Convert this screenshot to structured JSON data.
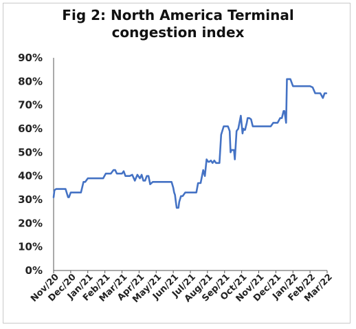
{
  "chart_data": {
    "type": "line",
    "title_lines": [
      "Fig 2: North America Terminal",
      "congestion index"
    ],
    "xlabel": "",
    "ylabel": "",
    "ylim": [
      0,
      90
    ],
    "y_ticks": [
      "0%",
      "10%",
      "20%",
      "30%",
      "40%",
      "50%",
      "60%",
      "70%",
      "80%",
      "90%"
    ],
    "x_tick_labels": [
      "Nov/20",
      "Dec/20",
      "Jan/21",
      "Feb/21",
      "Mar/21",
      "Apr/21",
      "May/21",
      "Jun/21",
      "Jul/21",
      "Aug/21",
      "Sep/21",
      "Oct/21",
      "Nov/21",
      "Dec/21",
      "Jan/22",
      "Feb/22",
      "Mar/22"
    ],
    "grid": false,
    "legend": "none",
    "line_color": "#4472c4",
    "series": [
      {
        "x": [
          0.0,
          0.05,
          0.15,
          0.25,
          0.35,
          0.45,
          0.55,
          0.7,
          0.85,
          0.9,
          1.0,
          1.08,
          1.2,
          1.4,
          1.6,
          1.75,
          1.85,
          2.0,
          2.15,
          2.3,
          2.45,
          2.6,
          2.75,
          2.9,
          3.05,
          3.2,
          3.35,
          3.5,
          3.6,
          3.7,
          3.85,
          4.0,
          4.1,
          4.2,
          4.3,
          4.45,
          4.6,
          4.75,
          4.9,
          5.05,
          5.15,
          5.25,
          5.35,
          5.45,
          5.55,
          5.65,
          5.8,
          5.9,
          6.0,
          6.1,
          6.3,
          6.5,
          6.7,
          6.9,
          7.0,
          7.05,
          7.1,
          7.15,
          7.2,
          7.25,
          7.3,
          7.35,
          7.45,
          7.55,
          7.7,
          7.9,
          8.05,
          8.2,
          8.35,
          8.45,
          8.6,
          8.75,
          8.85,
          8.95,
          9.05,
          9.1,
          9.2,
          9.3,
          9.4,
          9.5,
          9.6,
          9.7,
          9.8,
          9.95,
          10.1,
          10.2,
          10.3,
          10.35,
          10.4,
          10.5,
          10.55,
          10.6,
          10.7,
          10.8,
          10.95,
          11.05,
          11.1,
          11.15,
          11.2,
          11.25,
          11.3,
          11.35,
          11.45,
          11.55,
          11.65,
          11.75,
          11.9,
          12.05,
          12.15,
          12.25,
          12.5,
          12.7,
          12.85,
          12.95,
          13.1,
          13.25,
          13.35,
          13.45,
          13.5,
          13.55,
          13.6,
          13.65,
          13.75,
          13.85,
          14.0,
          14.2,
          14.4,
          14.6,
          14.8,
          15.0,
          15.15,
          15.3,
          15.45,
          15.6,
          15.75,
          15.85,
          15.95
        ],
        "values": [
          31,
          34,
          34.5,
          34.5,
          34.5,
          34.5,
          34.5,
          34.5,
          31,
          31,
          33,
          33,
          33,
          33,
          33,
          37.5,
          37.5,
          39,
          39,
          39,
          39,
          39,
          39,
          39,
          41,
          41,
          41,
          42.5,
          42.5,
          41,
          41,
          41,
          42,
          40,
          40,
          40,
          40.5,
          38,
          40.5,
          39,
          40.5,
          38,
          38,
          40,
          40,
          36.5,
          37.5,
          37.5,
          37.5,
          37.5,
          37.5,
          37.5,
          37.5,
          37.5,
          35,
          33,
          32,
          29,
          26.5,
          26.5,
          26.5,
          29,
          31.5,
          31.5,
          33,
          33,
          33,
          33,
          33,
          37,
          37,
          42.5,
          40,
          47,
          46,
          46,
          46.5,
          45.5,
          46.5,
          45.5,
          45.5,
          45.5,
          57.5,
          61,
          61,
          61,
          59,
          50,
          51,
          51,
          51,
          47,
          59,
          60,
          65.5,
          58,
          60,
          59.5,
          59.5,
          61,
          62.5,
          64.5,
          64.5,
          64,
          61,
          61,
          61,
          61,
          61,
          61,
          61,
          61,
          62.5,
          62.5,
          62.5,
          64.5,
          64.5,
          67.5,
          67.5,
          65,
          62.5,
          81,
          81,
          81,
          78,
          78,
          78,
          78,
          78,
          78,
          77.5,
          75,
          75,
          75,
          73,
          75,
          75
        ]
      }
    ]
  }
}
